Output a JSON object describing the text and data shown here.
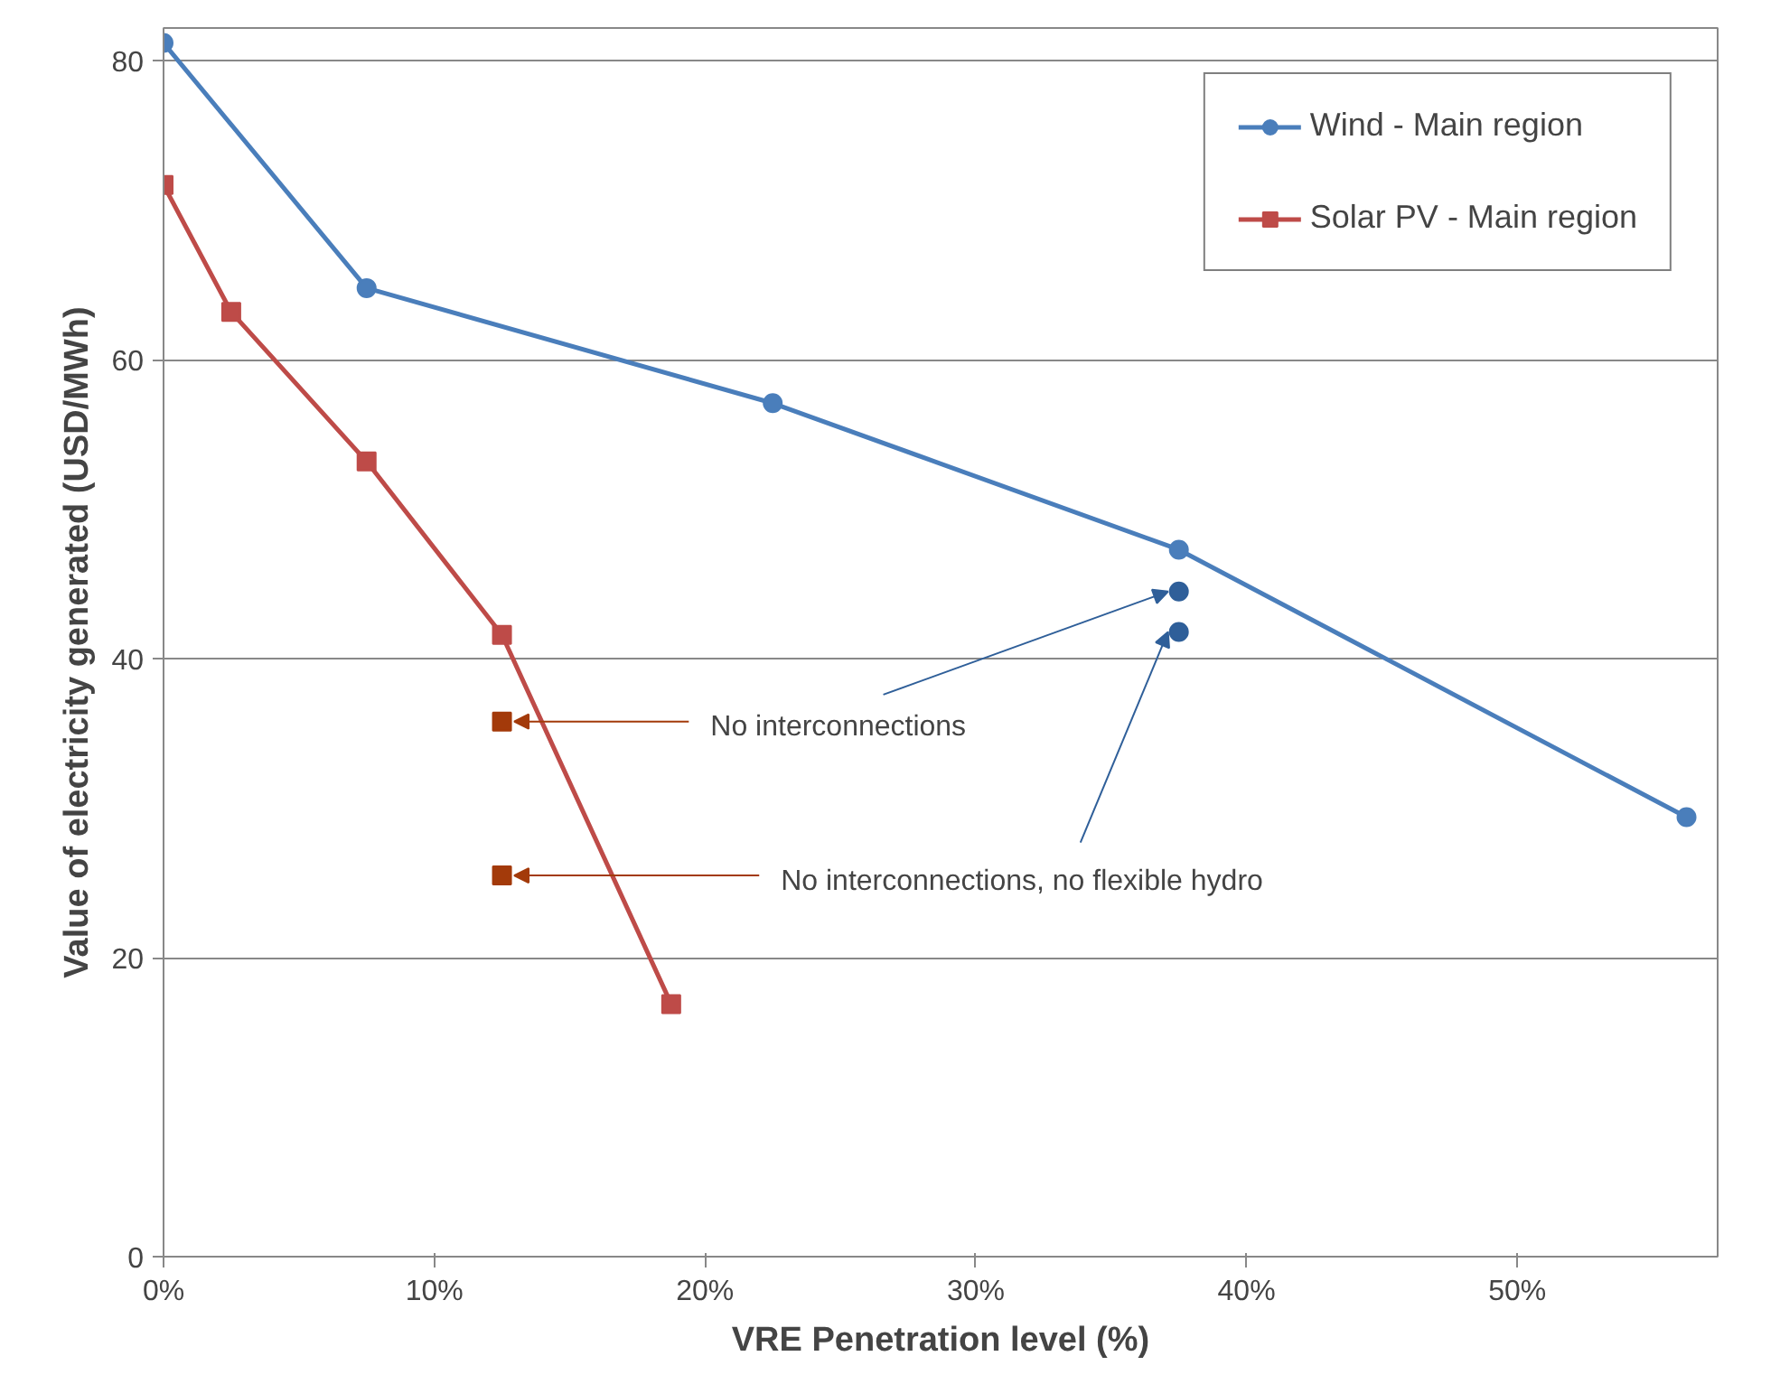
{
  "chart_data": {
    "type": "line",
    "xlabel": "VRE Penetration level (%)",
    "ylabel": "Value of electricity generated (USD/MWh)",
    "xlim": [
      0,
      57.4
    ],
    "ylim": [
      0,
      82.2
    ],
    "xticks": [
      {
        "value": 0,
        "label": "0%"
      },
      {
        "value": 10,
        "label": "10%"
      },
      {
        "value": 20,
        "label": "20%"
      },
      {
        "value": 30,
        "label": "30%"
      },
      {
        "value": 40,
        "label": "40%"
      },
      {
        "value": 50,
        "label": "50%"
      }
    ],
    "yticks": [
      0,
      20,
      40,
      60,
      80
    ],
    "grid": "y",
    "legend": "top right",
    "series": [
      {
        "name": "Wind - Main region",
        "color": "#4a7ebb",
        "marker": "circle",
        "x": [
          0,
          7.5,
          22.5,
          37.5,
          56.25
        ],
        "values": [
          81.2,
          64.8,
          57.1,
          47.3,
          29.4
        ]
      },
      {
        "name": "Solar PV - Main region",
        "color": "#be4b48",
        "marker": "square",
        "x": [
          0,
          2.5,
          7.5,
          12.5,
          18.75
        ],
        "values": [
          71.7,
          63.2,
          53.2,
          41.6,
          16.9
        ]
      },
      {
        "type": "scatter",
        "color": "#2f5f99",
        "marker": "circle",
        "x": [
          37.5,
          37.5
        ],
        "values": [
          44.5,
          41.8
        ]
      },
      {
        "type": "scatter",
        "color": "#a33a0a",
        "marker": "square",
        "x": [
          12.5,
          12.5
        ],
        "values": [
          35.8,
          25.5
        ]
      }
    ],
    "annotations": [
      {
        "text": "No interconnections",
        "x": 12.5,
        "y": 35.8
      },
      {
        "text": "No interconnections, no flexible hydro",
        "x": 12.5,
        "y": 25.5
      }
    ]
  }
}
